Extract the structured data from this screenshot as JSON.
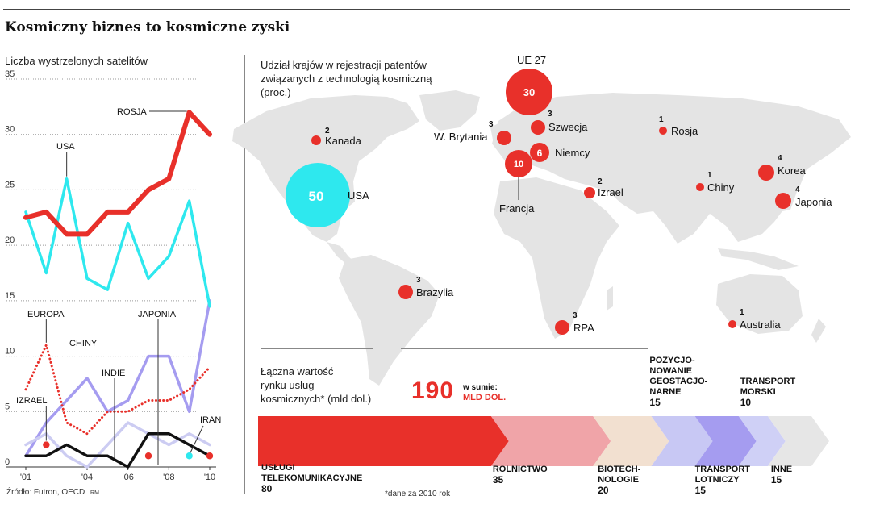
{
  "title": "Kosmiczny biznes to kosmiczne zyski",
  "source": "Źródło: Futron, OECD",
  "credit": "RM",
  "colors": {
    "red": "#e8302a",
    "cyan": "#2ee8ee",
    "lavender": "#a59cf0",
    "lightlavender": "#ccccf2",
    "black": "#111111",
    "map": "#e4e4e4"
  },
  "chart_data": [
    {
      "type": "line",
      "title": "Liczba wystrzelonych satelitów",
      "ylim": [
        0,
        35
      ],
      "yticks": [
        "0",
        "5",
        "10",
        "15",
        "20",
        "25",
        "30",
        "35"
      ],
      "x": [
        2001,
        2002,
        2003,
        2004,
        2005,
        2006,
        2007,
        2008,
        2009,
        2010
      ],
      "xtick_labels": [
        "'01",
        "'04",
        "'06",
        "'08",
        "'10"
      ],
      "xtick_years": [
        2001,
        2004,
        2006,
        2008,
        2010
      ],
      "series": [
        {
          "name": "ROSJA",
          "color": "#e8302a",
          "style": "thick",
          "values": [
            22.5,
            23,
            21,
            21,
            23,
            23,
            25,
            26,
            32,
            30
          ]
        },
        {
          "name": "USA",
          "color": "#2ee8ee",
          "style": "solid",
          "values": [
            23,
            17.5,
            26,
            17,
            16,
            22,
            17,
            19,
            24,
            14.5
          ]
        },
        {
          "name": "EUROPA",
          "color": "#e8302a",
          "style": "dotted",
          "values": [
            7,
            11,
            4,
            3,
            5,
            5,
            6,
            6,
            7,
            9
          ]
        },
        {
          "name": "CHINY",
          "color": "#a59cf0",
          "style": "solid",
          "values": [
            1,
            4,
            6,
            8,
            5,
            6,
            10,
            10,
            5,
            15
          ]
        },
        {
          "name": "JAPONIA",
          "color": "#ccccf2",
          "style": "solid",
          "values": [
            2,
            3,
            1,
            0,
            2,
            4,
            3,
            2,
            3,
            2
          ]
        },
        {
          "name": "INDIE",
          "color": "#111111",
          "style": "solid",
          "values": [
            1,
            1,
            2,
            1,
            1,
            0,
            3,
            3,
            2,
            1
          ]
        },
        {
          "name": "IZRAEL",
          "color": "#e8302a",
          "style": "dot",
          "points": [
            [
              2002,
              2
            ]
          ]
        },
        {
          "name": "IRAN",
          "color": "#e8302a",
          "style": "dot",
          "points": [
            [
              2010,
              1
            ]
          ]
        },
        {
          "name": "",
          "color": "#2ee8ee",
          "style": "dot",
          "points": [
            [
              2009,
              1
            ]
          ]
        },
        {
          "name": "",
          "color": "#e8302a",
          "style": "dot",
          "points": [
            [
              2007,
              1
            ]
          ]
        }
      ]
    },
    {
      "type": "bubble-map",
      "title": "Udział krajów w rejestracji patentów związanych z technologią kosmiczną (proc.)",
      "title_lines": [
        "Udział krajów w rejestracji patentów",
        "związanych z technologią kosmiczną",
        "(proc.)"
      ],
      "points": [
        {
          "country": "UE 27",
          "value": 30
        },
        {
          "country": "USA",
          "value": 50
        },
        {
          "country": "Kanada",
          "value": 2
        },
        {
          "country": "W. Brytania",
          "value": 3
        },
        {
          "country": "Szwecja",
          "value": 3
        },
        {
          "country": "Niemcy",
          "value": 6
        },
        {
          "country": "Francja",
          "value": 10
        },
        {
          "country": "Rosja",
          "value": 1
        },
        {
          "country": "Izrael",
          "value": 2
        },
        {
          "country": "Chiny",
          "value": 1
        },
        {
          "country": "Korea",
          "value": 4
        },
        {
          "country": "Japonia",
          "value": 4
        },
        {
          "country": "Brazylia",
          "value": 3
        },
        {
          "country": "RPA",
          "value": 3
        },
        {
          "country": "Australia",
          "value": 1
        }
      ]
    },
    {
      "type": "bar",
      "title": "Łączna wartość rynku usług kosmicznych* (mld dol.)",
      "title_lines": [
        "Łączna wartość",
        "rynku usług",
        "kosmicznych* (mld dol.)"
      ],
      "total": "190",
      "total_label": "w sumie:",
      "total_unit": "MLD DOL.",
      "footnote": "*dane za 2010 rok",
      "categories": [
        "USŁUGI TELEKOMUNIKACYJNE",
        "ROLNICTWO",
        "BIOTECHNOLOGIE",
        "POZYCJONOWANIE GEOSTACJONARNE",
        "TRANSPORT LOTNICZY",
        "TRANSPORT MORSKI",
        "INNE"
      ],
      "values": [
        80,
        35,
        20,
        15,
        15,
        10,
        15
      ],
      "segment_labels": [
        [
          "USŁUGI",
          "TELEKOMUNIKACYJNE"
        ],
        [
          "ROLNICTWO"
        ],
        [
          "BIOTECH-",
          "NOLOGIE"
        ],
        [
          "POZYCJO-",
          "NOWANIE",
          "GEOSTACJO-",
          "NARNE"
        ],
        [
          "TRANSPORT",
          "LOTNICZY"
        ],
        [
          "TRANSPORT",
          "MORSKI"
        ],
        [
          "INNE"
        ]
      ],
      "colors": [
        "#e8302a",
        "#f0a4a8",
        "#f2e0d0",
        "#c8c8f4",
        "#a59cf0",
        "#cfd0f6",
        "#e6e6e6"
      ]
    }
  ]
}
